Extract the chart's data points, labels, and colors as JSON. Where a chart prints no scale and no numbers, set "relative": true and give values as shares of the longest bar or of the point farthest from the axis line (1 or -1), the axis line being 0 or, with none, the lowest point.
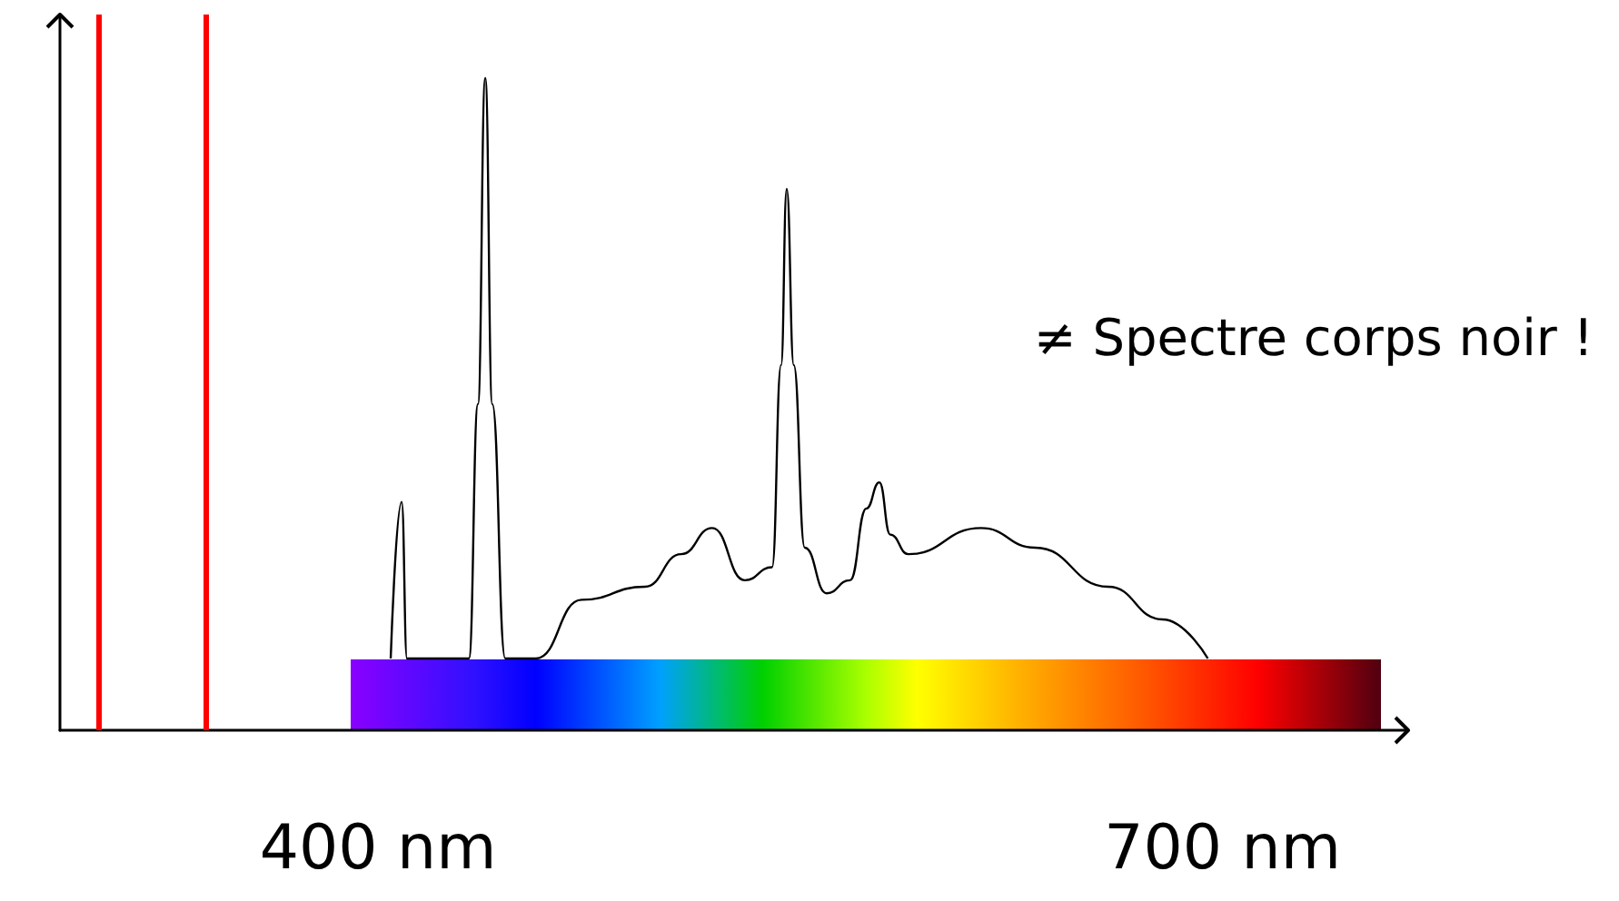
{
  "chart_data": {
    "type": "line",
    "relative": true,
    "x": [
      404.5,
      408.4,
      410.3,
      432.3,
      435.5,
      438.1,
      440.6,
      445.2,
      456.1,
      472.3,
      494.8,
      507.7,
      518.7,
      530.3,
      540,
      543.2,
      545.2,
      547.7,
      551.6,
      559.4,
      567.7,
      573.5,
      578.1,
      582,
      588.4,
      614.2,
      633.5,
      659.4,
      678.7,
      694.8
    ],
    "series": [
      {
        "color": "#000000",
        "values": [
          0.11,
          0.35,
          0.11,
          0.11,
          0.5,
          1,
          0.5,
          0.11,
          0.11,
          0.2,
          0.22,
          0.27,
          0.31,
          0.23,
          0.25,
          0.56,
          0.83,
          0.56,
          0.28,
          0.21,
          0.23,
          0.34,
          0.38,
          0.3,
          0.27,
          0.31,
          0.28,
          0.22,
          0.17,
          0.11
        ]
      }
    ],
    "xlim": [
      287,
      766
    ],
    "xticks": [
      {
        "value": 400,
        "label": "400 nm"
      },
      {
        "value": 700,
        "label": "700 nm"
      }
    ],
    "ref_lines": [
      {
        "axis": "x",
        "value": 301,
        "color": "#ff0000"
      },
      {
        "axis": "x",
        "value": 339,
        "color": "#ff0000"
      }
    ],
    "annotations": [
      "≠ Spectre corps noir !"
    ],
    "grid": false,
    "marker": "none",
    "line_style": "solid"
  }
}
